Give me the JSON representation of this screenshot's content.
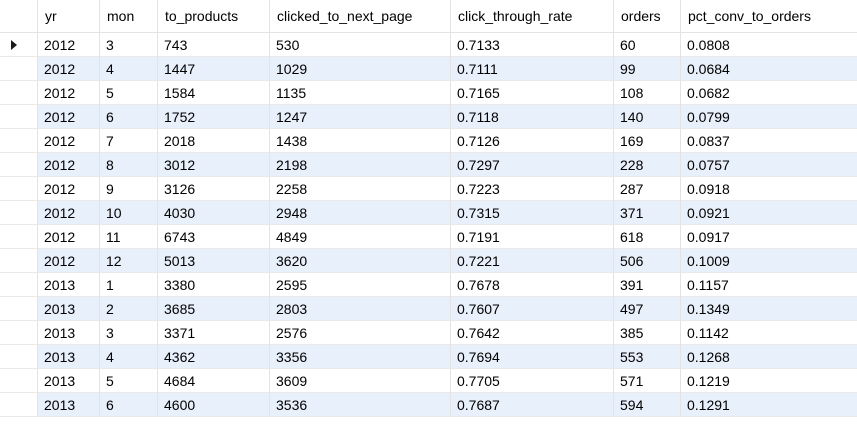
{
  "table": {
    "columns": [
      "yr",
      "mon",
      "to_products",
      "clicked_to_next_page",
      "click_through_rate",
      "orders",
      "pct_conv_to_orders"
    ],
    "rows": [
      [
        "2012",
        "3",
        "743",
        "530",
        "0.7133",
        "60",
        "0.0808"
      ],
      [
        "2012",
        "4",
        "1447",
        "1029",
        "0.7111",
        "99",
        "0.0684"
      ],
      [
        "2012",
        "5",
        "1584",
        "1135",
        "0.7165",
        "108",
        "0.0682"
      ],
      [
        "2012",
        "6",
        "1752",
        "1247",
        "0.7118",
        "140",
        "0.0799"
      ],
      [
        "2012",
        "7",
        "2018",
        "1438",
        "0.7126",
        "169",
        "0.0837"
      ],
      [
        "2012",
        "8",
        "3012",
        "2198",
        "0.7297",
        "228",
        "0.0757"
      ],
      [
        "2012",
        "9",
        "3126",
        "2258",
        "0.7223",
        "287",
        "0.0918"
      ],
      [
        "2012",
        "10",
        "4030",
        "2948",
        "0.7315",
        "371",
        "0.0921"
      ],
      [
        "2012",
        "11",
        "6743",
        "4849",
        "0.7191",
        "618",
        "0.0917"
      ],
      [
        "2012",
        "12",
        "5013",
        "3620",
        "0.7221",
        "506",
        "0.1009"
      ],
      [
        "2013",
        "1",
        "3380",
        "2595",
        "0.7678",
        "391",
        "0.1157"
      ],
      [
        "2013",
        "2",
        "3685",
        "2803",
        "0.7607",
        "497",
        "0.1349"
      ],
      [
        "2013",
        "3",
        "3371",
        "2576",
        "0.7642",
        "385",
        "0.1142"
      ],
      [
        "2013",
        "4",
        "4362",
        "3356",
        "0.7694",
        "553",
        "0.1268"
      ],
      [
        "2013",
        "5",
        "4684",
        "3609",
        "0.7705",
        "571",
        "0.1219"
      ],
      [
        "2013",
        "6",
        "4600",
        "3536",
        "0.7687",
        "594",
        "0.1291"
      ]
    ],
    "current_row_marker_icon": "current-row-arrow-icon",
    "colors": {
      "alt_row": "#e8f0fb",
      "grid_line": "#e3e3e3",
      "background": "#ffffff"
    }
  }
}
